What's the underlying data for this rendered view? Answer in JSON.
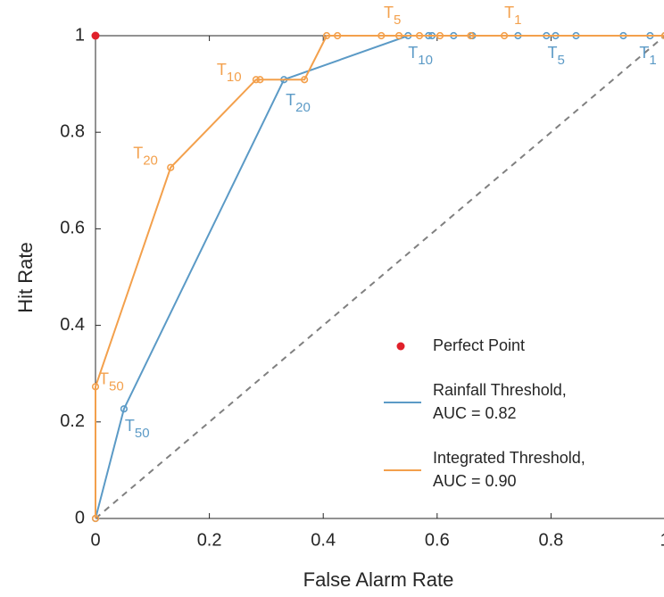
{
  "chart_data": {
    "type": "line",
    "x_label": "False Alarm Rate",
    "y_label": "Hit Rate",
    "xlim": [
      0,
      1
    ],
    "ylim": [
      0,
      1
    ],
    "xticks": [
      0,
      0.2,
      0.4,
      0.6,
      0.8,
      1
    ],
    "yticks": [
      0,
      0.2,
      0.4,
      0.6,
      0.8,
      1
    ],
    "grid": false,
    "legend_position": "lower right",
    "reference_line": {
      "x": [
        0,
        1
      ],
      "values": [
        0,
        1
      ],
      "color": "#808080",
      "dashed": true
    },
    "series": [
      {
        "name": [
          "Perfect Point"
        ],
        "type": "scatter",
        "color": "#e0202a",
        "x": [
          0
        ],
        "values": [
          1
        ]
      },
      {
        "name": [
          "Rainfall Threshold,",
          "AUC = 0.82"
        ],
        "type": "line",
        "color": "#5b9ac6",
        "x": [
          0,
          0.05,
          0.331,
          0.549,
          0.585,
          0.591,
          0.629,
          0.662,
          0.742,
          0.792,
          0.808,
          0.844,
          0.927,
          0.974,
          1
        ],
        "values": [
          0,
          0.227,
          0.909,
          1,
          1,
          1,
          1,
          1,
          1,
          1,
          1,
          1,
          1,
          1,
          1
        ],
        "point_labels": [
          null,
          {
            "text": "T",
            "sub": "50"
          },
          {
            "text": "T",
            "sub": "20"
          },
          {
            "text": "T",
            "sub": "10"
          },
          null,
          null,
          null,
          null,
          null,
          null,
          {
            "text": "T",
            "sub": "5"
          },
          null,
          null,
          {
            "text": "T",
            "sub": "1"
          },
          null
        ]
      },
      {
        "name": [
          "Integrated Threshold,",
          "AUC = 0.90"
        ],
        "type": "line",
        "color": "#f3a04c",
        "x": [
          0,
          0,
          0.132,
          0.282,
          0.289,
          0.367,
          0.406,
          0.425,
          0.502,
          0.533,
          0.569,
          0.605,
          0.659,
          0.718,
          1
        ],
        "values": [
          0,
          0.273,
          0.727,
          0.909,
          0.909,
          0.909,
          1,
          1,
          1,
          1,
          1,
          1,
          1,
          1,
          1
        ],
        "point_labels": [
          null,
          {
            "text": "T",
            "sub": "50"
          },
          {
            "text": "T",
            "sub": "20"
          },
          {
            "text": "T",
            "sub": "10"
          },
          null,
          null,
          null,
          null,
          null,
          {
            "text": "T",
            "sub": "5"
          },
          null,
          null,
          null,
          {
            "text": "T",
            "sub": "1"
          },
          null
        ]
      }
    ]
  }
}
